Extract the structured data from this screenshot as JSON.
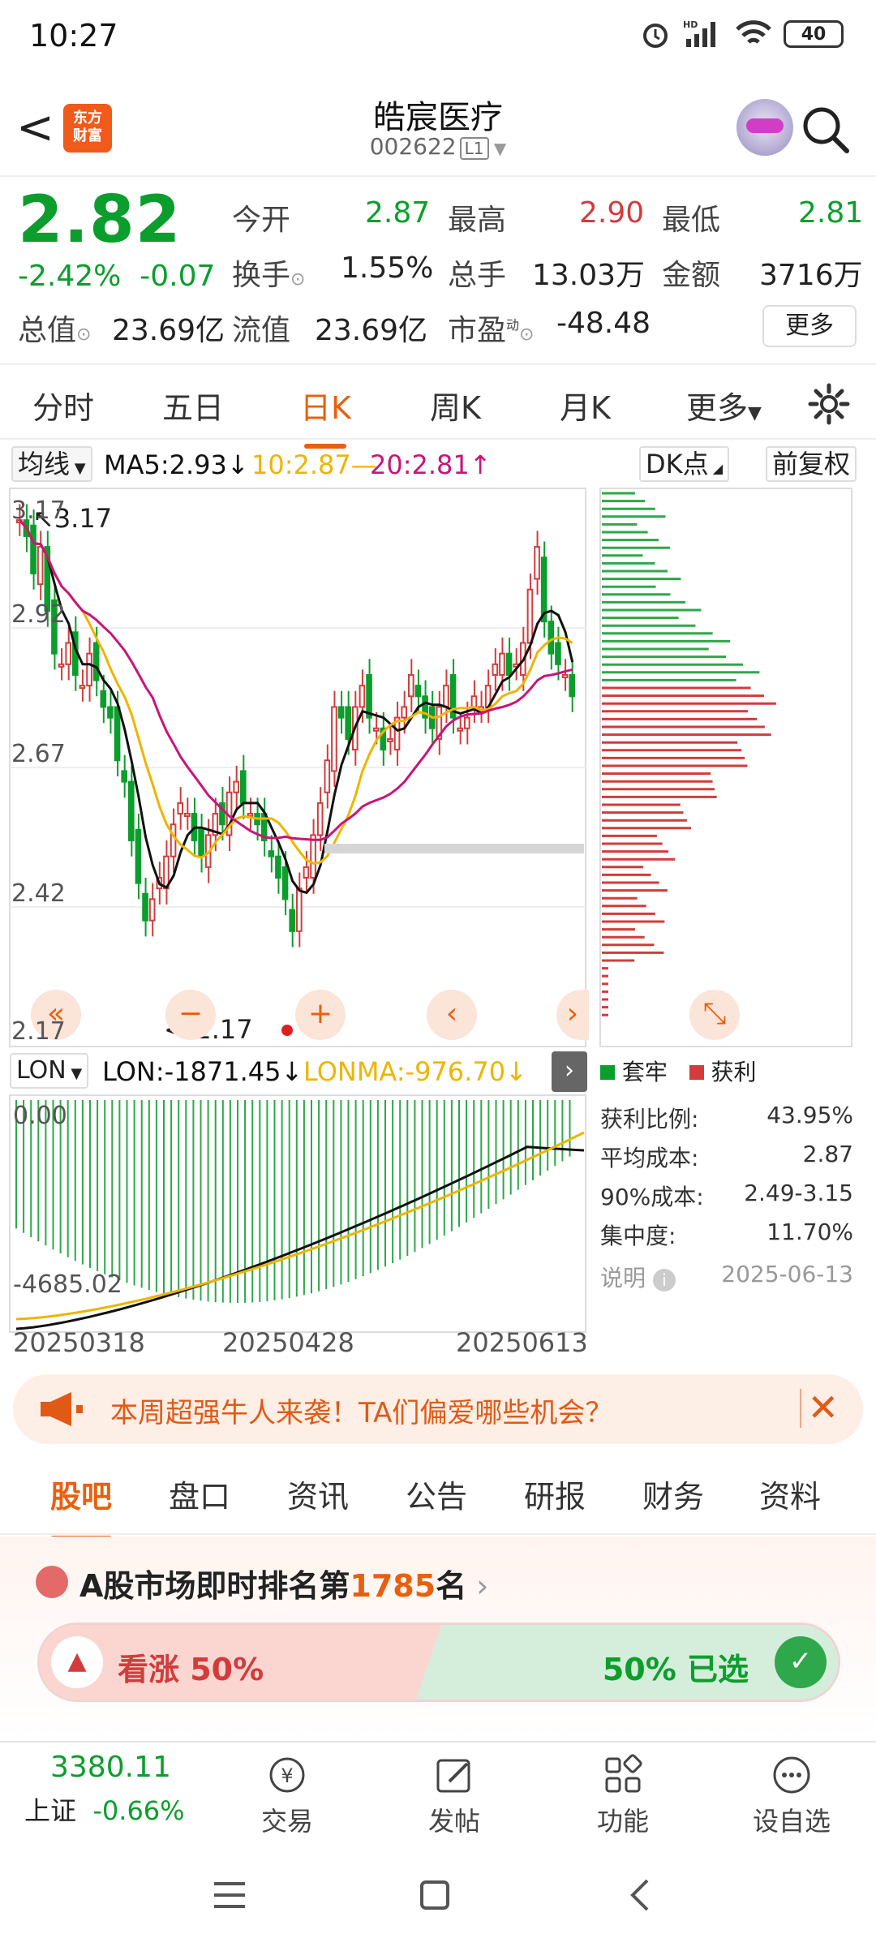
{
  "status_bar": {
    "time": "10:27",
    "battery": "40"
  },
  "header": {
    "back": "<",
    "logo_text": "东方财富",
    "title": "皓宸医疗",
    "code": "002622",
    "level": "L1"
  },
  "quote": {
    "price": "2.82",
    "change_pct": "-2.42%",
    "change": "-0.07",
    "open_label": "今开",
    "open": "2.87",
    "high_label": "最高",
    "high": "2.90",
    "low_label": "最低",
    "low": "2.81",
    "turnover_label": "换手",
    "turnover": "1.55%",
    "volume_label": "总手",
    "volume": "13.03万",
    "amount_label": "金额",
    "amount": "3716万",
    "mcap_label": "总值",
    "mcap": "23.69亿",
    "float_label": "流值",
    "float": "23.69亿",
    "pe_label": "市盈",
    "pe_sup": "动",
    "pe": "-48.48",
    "more": "更多"
  },
  "period_tabs": [
    "分时",
    "五日",
    "日K",
    "周K",
    "月K",
    "更多"
  ],
  "active_tab": "日K",
  "indicator_bar": {
    "ma_select": "均线",
    "ma5": "MA5:2.93↓",
    "ma10": "10:2.87—",
    "ma20": "20:2.81↑",
    "dk": "DK点",
    "fq": "前复权"
  },
  "chart": {
    "y_ticks": [
      "3.17",
      "2.92",
      "2.67",
      "2.42",
      "2.17"
    ],
    "high_label": "3.17",
    "low_label": "<-2.17",
    "lon_select": "LON",
    "lon": "LON:-1871.45↓",
    "lonma": "LONMA:-976.70↓",
    "lon_top": "0.00",
    "lon_bottom": "-4685.02",
    "dates": [
      "20250318",
      "20250428",
      "20250613"
    ],
    "colors": {
      "up": "#d23c3c",
      "down": "#0b9e2c",
      "ma5": "#111111",
      "ma10": "#f0b400",
      "ma20": "#c8157a"
    }
  },
  "chip": {
    "legend_lock": "套牢",
    "legend_profit": "获利",
    "stats": [
      {
        "k": "获利比例:",
        "v": "43.95%"
      },
      {
        "k": "平均成本:",
        "v": "2.87"
      },
      {
        "k": "90%成本:",
        "v": "2.49-3.15"
      },
      {
        "k": "集中度:",
        "v": "11.70%"
      }
    ],
    "note": "说明",
    "date": "2025-06-13"
  },
  "banner": {
    "text": "本周超强牛人来袭！TA们偏爱哪些机会？"
  },
  "sub_tabs": [
    "股吧",
    "盘口",
    "资讯",
    "公告",
    "研报",
    "财务",
    "资料"
  ],
  "rank": {
    "prefix": "A股市场即时排名第",
    "num": "1785",
    "suffix": "名"
  },
  "vote": {
    "up": "看涨 50%",
    "down": "50% 已选"
  },
  "bottom_nav": {
    "index_value": "3380.11",
    "index_name": "上证",
    "index_change": "-0.66%",
    "trade": "交易",
    "post": "发帖",
    "func": "功能",
    "watch": "设自选"
  }
}
